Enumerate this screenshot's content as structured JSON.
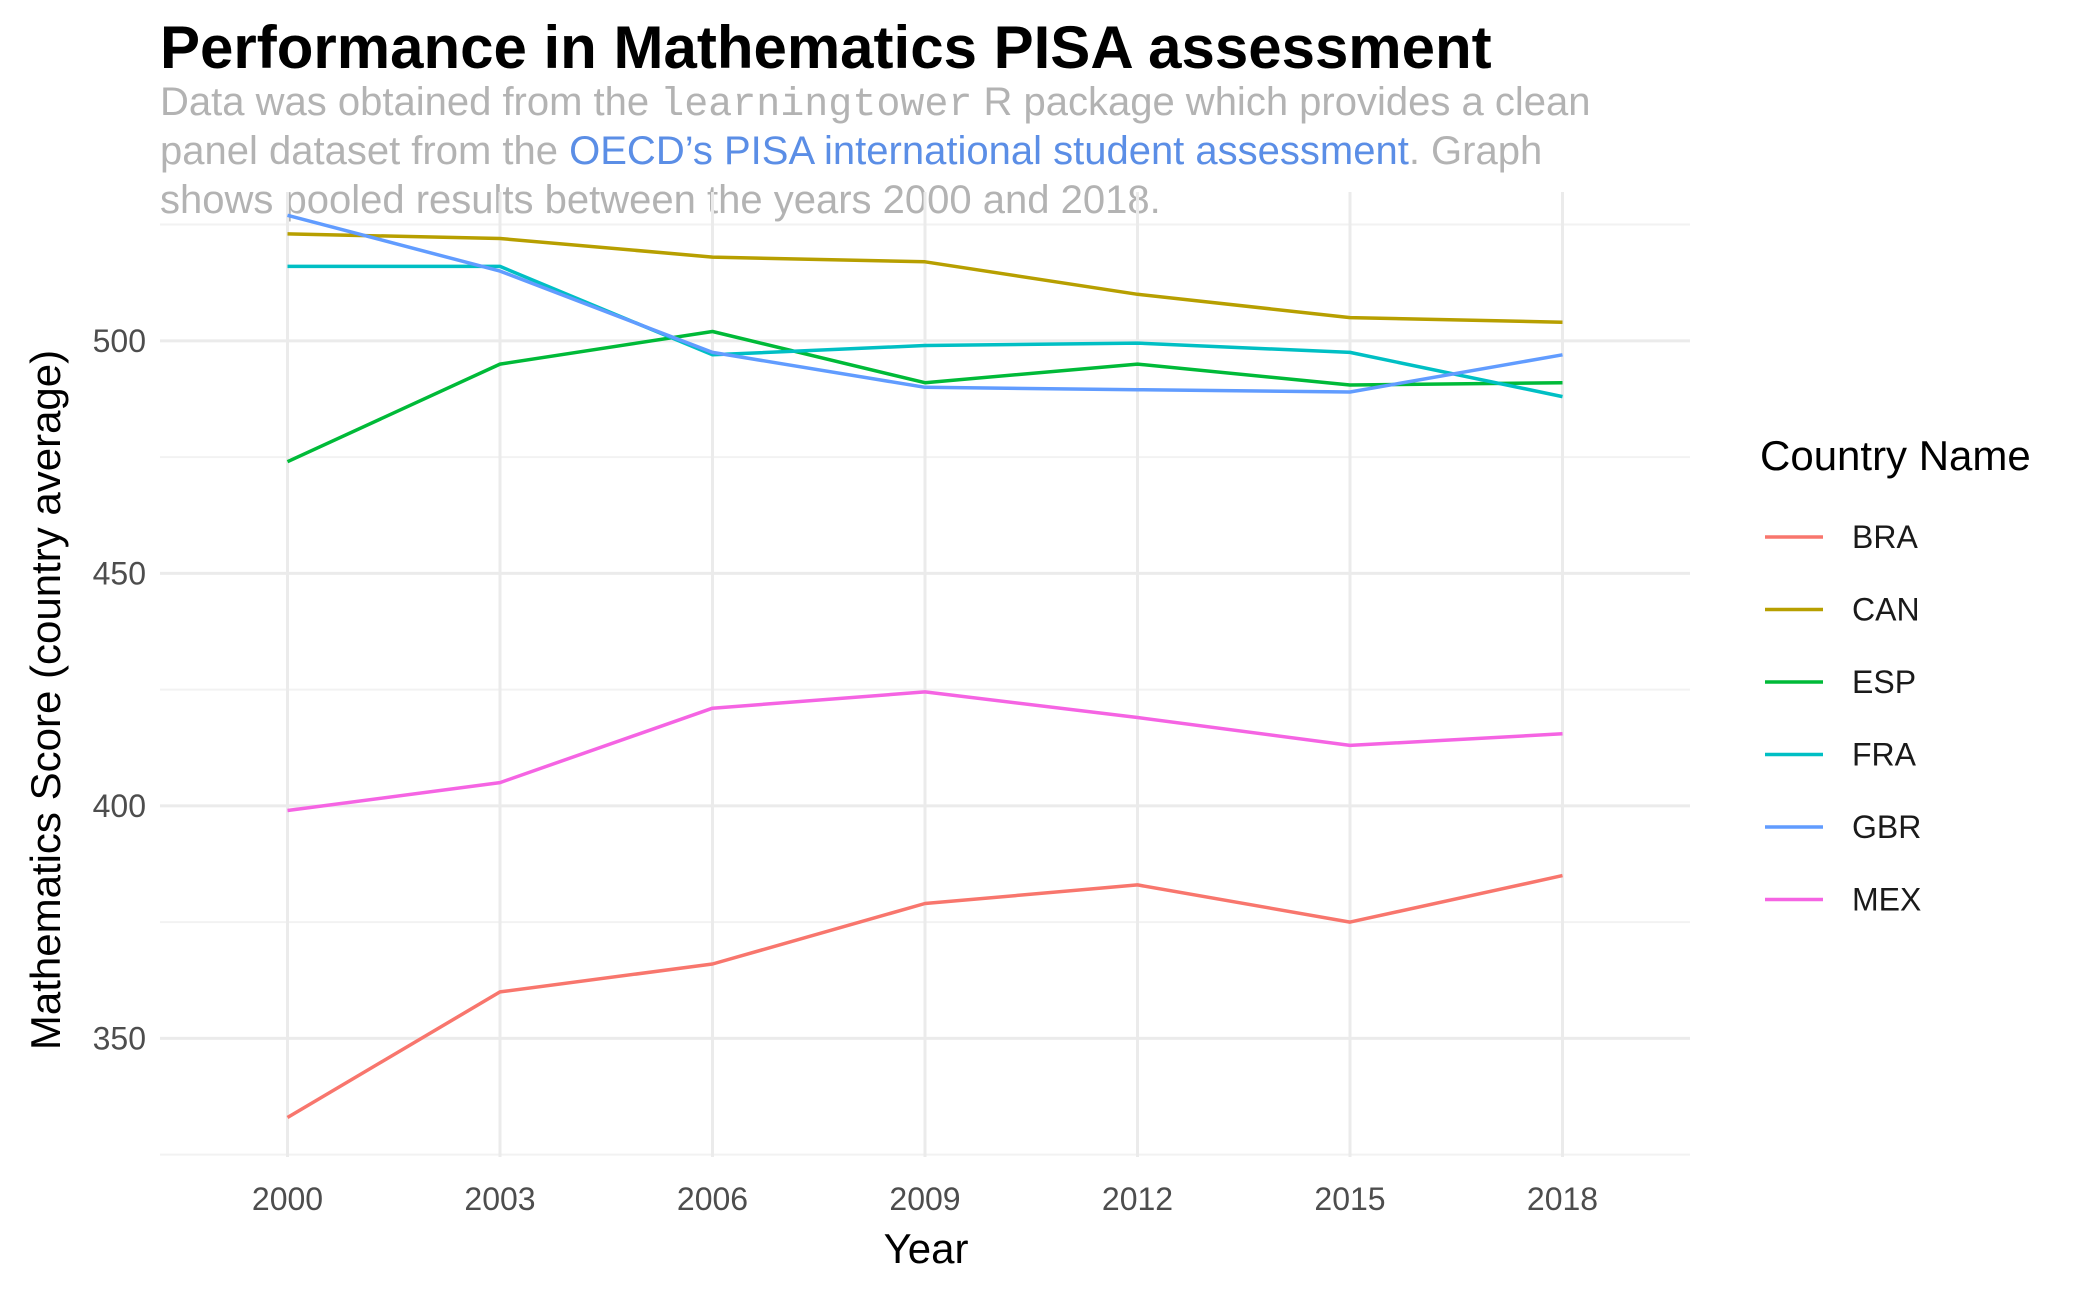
{
  "header": {
    "title": "Performance in Mathematics PISA assessment",
    "subtitle_part1": "Data was obtained from the ",
    "subtitle_code": "learningtower",
    "subtitle_part2": " R package which provides a clean",
    "subtitle_part3": "panel dataset from the ",
    "subtitle_link": "OECD’s PISA international student assessment",
    "subtitle_part4": ". Graph",
    "subtitle_part5": "shows pooled results between the years 2000 and 2018."
  },
  "chart_data": {
    "type": "line",
    "title": "Performance in Mathematics PISA assessment",
    "xlabel": "Year",
    "ylabel": "Mathematics Score (country average)",
    "x": [
      2000,
      2003,
      2006,
      2009,
      2012,
      2015,
      2018
    ],
    "xlim": [
      1998.2,
      2019.8
    ],
    "ylim": [
      324.5,
      532
    ],
    "y_ticks": [
      350,
      400,
      450,
      500
    ],
    "y_minor_ticks": [
      325,
      375,
      425,
      475,
      525
    ],
    "legend_title": "Country Name",
    "legend_position": "right",
    "grid": true,
    "series": [
      {
        "name": "BRA",
        "color": "#F8766D",
        "values": [
          333,
          360,
          366,
          379,
          383,
          375,
          385
        ]
      },
      {
        "name": "CAN",
        "color": "#B79F00",
        "values": [
          523,
          522,
          518,
          517,
          510,
          505,
          504
        ]
      },
      {
        "name": "ESP",
        "color": "#00BA38",
        "values": [
          474,
          495,
          502,
          491,
          495,
          490.5,
          491
        ]
      },
      {
        "name": "FRA",
        "color": "#00BFC4",
        "values": [
          516,
          516,
          497,
          499,
          499.5,
          497.5,
          488
        ]
      },
      {
        "name": "GBR",
        "color": "#619CFF",
        "values": [
          527,
          515,
          497.5,
          490,
          489.5,
          489,
          497
        ]
      },
      {
        "name": "MEX",
        "color": "#F564E3",
        "values": [
          399,
          405,
          421,
          424.5,
          419,
          413,
          415.5
        ]
      }
    ]
  }
}
